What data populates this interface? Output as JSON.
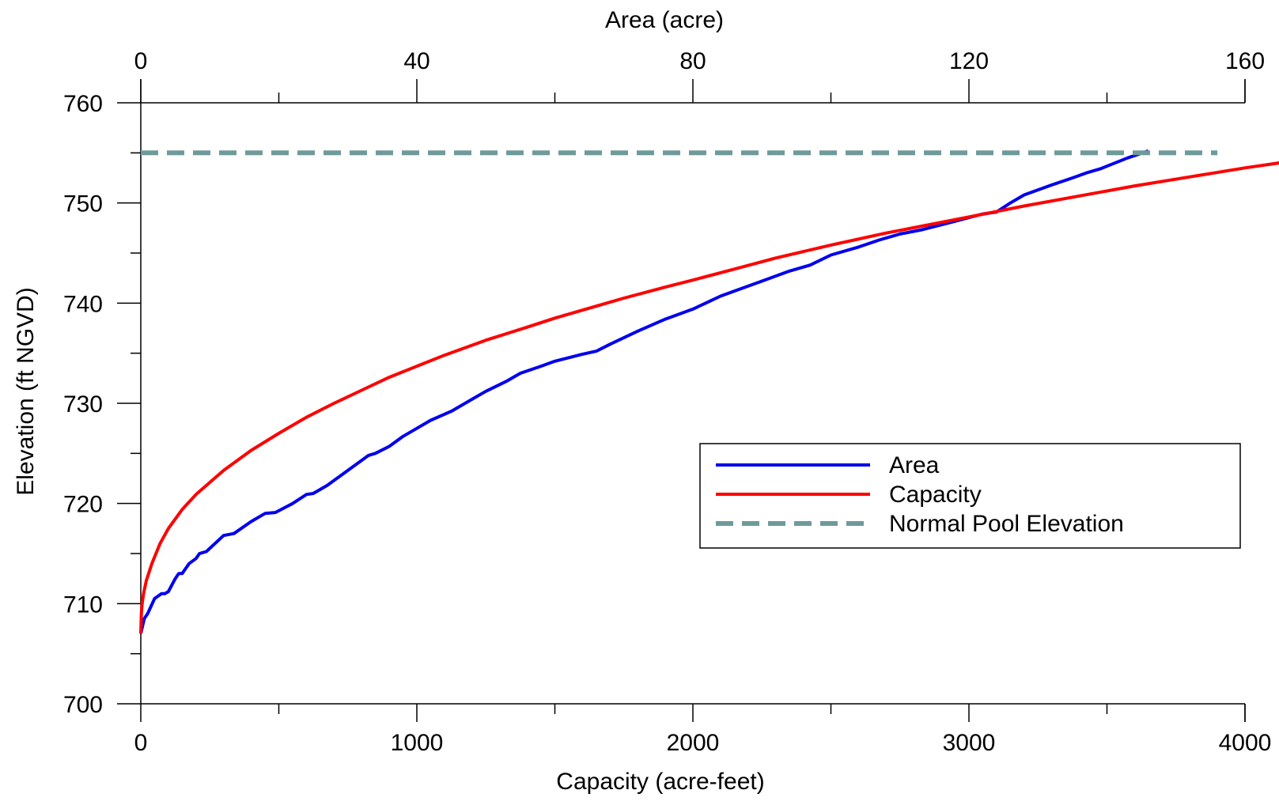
{
  "chart_data": {
    "type": "line",
    "bottom_axis": {
      "label": "Capacity (acre-feet)",
      "range": [
        0,
        4000
      ],
      "ticks": [
        0,
        1000,
        2000,
        3000,
        4000
      ],
      "minor_ticks": [
        500,
        1500,
        2500,
        3500
      ]
    },
    "top_axis": {
      "label": "Area (acre)",
      "range": [
        0,
        160
      ],
      "ticks": [
        0,
        40,
        80,
        120,
        160
      ],
      "minor_ticks": [
        20,
        60,
        100,
        140
      ]
    },
    "left_axis": {
      "label": "Elevation (ft NGVD)",
      "range": [
        700,
        760
      ],
      "ticks": [
        700,
        710,
        720,
        730,
        740,
        750,
        760
      ],
      "minor_ticks": [
        705,
        715,
        725,
        735,
        745,
        755
      ]
    },
    "grid": false,
    "legend_position": "right-middle",
    "series": [
      {
        "name": "Area",
        "color": "#0000ee",
        "style": "solid",
        "axis": "top",
        "points": [
          [
            0,
            707
          ],
          [
            0.5,
            708.5
          ],
          [
            1,
            709
          ],
          [
            2,
            710.5
          ],
          [
            3,
            711
          ],
          [
            3.5,
            711
          ],
          [
            4,
            711.2
          ],
          [
            5,
            712.5
          ],
          [
            5.5,
            713
          ],
          [
            6,
            713
          ],
          [
            7,
            714
          ],
          [
            8,
            714.5
          ],
          [
            8.5,
            715
          ],
          [
            9.5,
            715.2
          ],
          [
            12,
            716.8
          ],
          [
            13.5,
            717
          ],
          [
            16,
            718.2
          ],
          [
            18,
            719
          ],
          [
            19.5,
            719.1
          ],
          [
            22,
            720
          ],
          [
            24,
            720.9
          ],
          [
            25,
            721
          ],
          [
            27,
            721.8
          ],
          [
            30,
            723.3
          ],
          [
            33,
            724.8
          ],
          [
            34,
            725
          ],
          [
            36,
            725.7
          ],
          [
            38,
            726.7
          ],
          [
            40,
            727.5
          ],
          [
            42,
            728.3
          ],
          [
            45,
            729.2
          ],
          [
            48,
            730.4
          ],
          [
            50,
            731.2
          ],
          [
            53,
            732.2
          ],
          [
            55,
            733
          ],
          [
            58,
            733.7
          ],
          [
            60,
            734.2
          ],
          [
            64,
            734.9
          ],
          [
            66,
            735.2
          ],
          [
            68,
            735.9
          ],
          [
            72,
            737.2
          ],
          [
            76,
            738.4
          ],
          [
            80,
            739.4
          ],
          [
            84,
            740.7
          ],
          [
            86,
            741.2
          ],
          [
            90,
            742.2
          ],
          [
            94,
            743.2
          ],
          [
            97,
            743.8
          ],
          [
            100,
            744.8
          ],
          [
            104,
            745.6
          ],
          [
            107,
            746.3
          ],
          [
            110,
            746.9
          ],
          [
            113,
            747.3
          ],
          [
            117,
            748
          ],
          [
            122,
            748.9
          ],
          [
            124,
            749.1
          ],
          [
            126,
            750
          ],
          [
            128,
            750.8
          ],
          [
            132,
            751.8
          ],
          [
            135,
            752.5
          ],
          [
            137,
            753
          ],
          [
            139,
            753.4
          ],
          [
            143,
            754.5
          ],
          [
            146,
            755.2
          ]
        ]
      },
      {
        "name": "Capacity",
        "color": "#ff0000",
        "style": "solid",
        "axis": "bottom",
        "points": [
          [
            0,
            707
          ],
          [
            2,
            709
          ],
          [
            5,
            710
          ],
          [
            10,
            711
          ],
          [
            20,
            712.3
          ],
          [
            40,
            714
          ],
          [
            70,
            716
          ],
          [
            100,
            717.5
          ],
          [
            150,
            719.4
          ],
          [
            200,
            720.9
          ],
          [
            300,
            723.3
          ],
          [
            400,
            725.3
          ],
          [
            500,
            727
          ],
          [
            600,
            728.6
          ],
          [
            700,
            730
          ],
          [
            800,
            731.3
          ],
          [
            900,
            732.6
          ],
          [
            1000,
            733.7
          ],
          [
            1100,
            734.8
          ],
          [
            1250,
            736.3
          ],
          [
            1400,
            737.6
          ],
          [
            1500,
            738.5
          ],
          [
            1600,
            739.3
          ],
          [
            1750,
            740.5
          ],
          [
            1900,
            741.6
          ],
          [
            2000,
            742.3
          ],
          [
            2150,
            743.4
          ],
          [
            2300,
            744.5
          ],
          [
            2500,
            745.8
          ],
          [
            2700,
            747
          ],
          [
            3000,
            748.6
          ],
          [
            3200,
            749.7
          ],
          [
            3400,
            750.7
          ],
          [
            3600,
            751.7
          ],
          [
            3800,
            752.6
          ],
          [
            4000,
            753.5
          ],
          [
            4200,
            754.3
          ],
          [
            4350,
            755
          ]
        ]
      },
      {
        "name": "Normal Pool Elevation",
        "color": "#6f9a9a",
        "style": "dashed",
        "axis": "bottom",
        "points": [
          [
            0,
            755
          ],
          [
            3900,
            755
          ]
        ]
      }
    ]
  }
}
